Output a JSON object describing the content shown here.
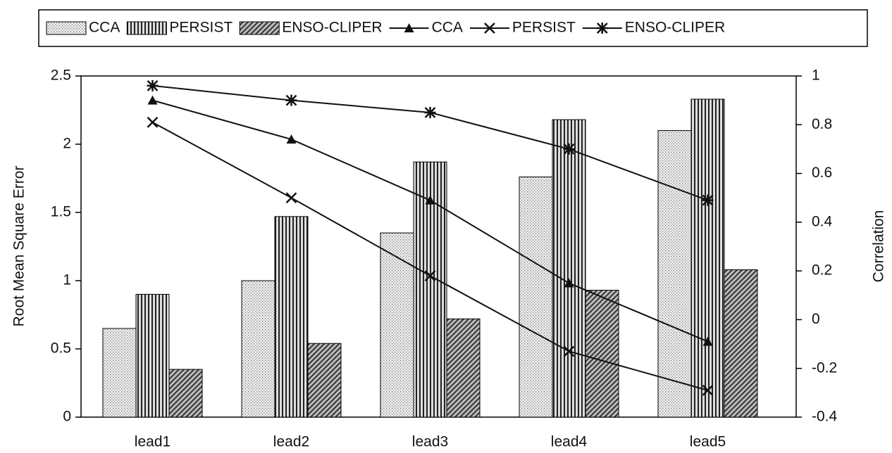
{
  "chart_data": {
    "type": "bar",
    "categories": [
      "lead1",
      "lead2",
      "lead3",
      "lead4",
      "lead5"
    ],
    "ylabel": "Root Mean Square Error",
    "y2label": "Correlation",
    "ylim": [
      0,
      2.5
    ],
    "yticks": [
      0,
      0.5,
      1,
      1.5,
      2,
      2.5
    ],
    "y2lim": [
      -0.4,
      1
    ],
    "y2ticks": [
      -0.4,
      -0.2,
      0,
      0.2,
      0.4,
      0.6,
      0.8,
      1
    ],
    "legend": "top",
    "series": [
      {
        "name": "CCA",
        "type": "bar",
        "color": "#d8d8d8",
        "values": [
          0.65,
          1.0,
          1.35,
          1.76,
          2.1
        ]
      },
      {
        "name": "PERSIST",
        "type": "bar",
        "color": "#555555",
        "values": [
          0.9,
          1.47,
          1.87,
          2.18,
          2.33
        ]
      },
      {
        "name": "ENSO-CLIPER",
        "type": "bar",
        "color": "#888888",
        "values": [
          0.35,
          0.54,
          0.72,
          0.93,
          1.08
        ]
      },
      {
        "name": "CCA",
        "type": "line",
        "axis": "y2",
        "marker": "triangle",
        "color": "#111111",
        "values": [
          0.9,
          0.74,
          0.49,
          0.15,
          -0.09
        ]
      },
      {
        "name": "PERSIST",
        "type": "line",
        "axis": "y2",
        "marker": "x",
        "color": "#111111",
        "values": [
          0.81,
          0.5,
          0.18,
          -0.13,
          -0.29
        ]
      },
      {
        "name": "ENSO-CLIPER",
        "type": "line",
        "axis": "y2",
        "marker": "star",
        "color": "#111111",
        "values": [
          0.96,
          0.9,
          0.85,
          0.7,
          0.49
        ]
      }
    ]
  }
}
